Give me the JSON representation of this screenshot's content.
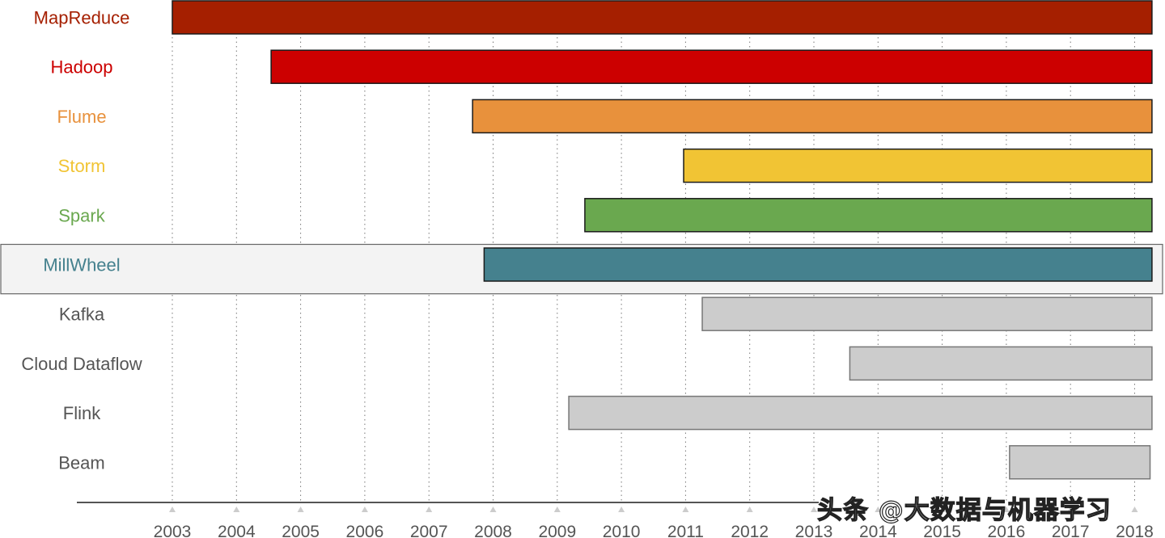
{
  "chart_data": {
    "type": "timeline",
    "x_axis": {
      "ticks": [
        "2003",
        "2004",
        "2005",
        "2006",
        "2007",
        "2008",
        "2009",
        "2010",
        "2011",
        "2012",
        "2013",
        "2014",
        "2015",
        "2016",
        "2017",
        "2018"
      ],
      "range": [
        2003,
        2018.3
      ],
      "grid": "dotted vertical"
    },
    "highlighted_row": "MillWheel",
    "series": [
      {
        "name": "MapReduce",
        "start": 2003.0,
        "end": 2018.27,
        "color": "#a51f00",
        "label_color": "#a51f00"
      },
      {
        "name": "Hadoop",
        "start": 2004.54,
        "end": 2018.27,
        "color": "#cc0000",
        "label_color": "#cc0000"
      },
      {
        "name": "Flume",
        "start": 2007.68,
        "end": 2018.27,
        "color": "#e8913c",
        "label_color": "#e8913c"
      },
      {
        "name": "Storm",
        "start": 2010.97,
        "end": 2018.27,
        "color": "#f1c434",
        "label_color": "#f1c434"
      },
      {
        "name": "Spark",
        "start": 2009.43,
        "end": 2018.27,
        "color": "#6aa84f",
        "label_color": "#6aa84f"
      },
      {
        "name": "MillWheel",
        "start": 2007.86,
        "end": 2018.27,
        "color": "#45818e",
        "label_color": "#45818e"
      },
      {
        "name": "Kafka",
        "start": 2011.26,
        "end": 2018.27,
        "color": "#cccccc",
        "label_color": "#555555"
      },
      {
        "name": "Cloud Dataflow",
        "start": 2013.56,
        "end": 2018.27,
        "color": "#cccccc",
        "label_color": "#555555"
      },
      {
        "name": "Flink",
        "start": 2009.18,
        "end": 2018.27,
        "color": "#cccccc",
        "label_color": "#555555"
      },
      {
        "name": "Beam",
        "start": 2016.05,
        "end": 2018.24,
        "color": "#cccccc",
        "label_color": "#555555"
      }
    ]
  },
  "watermark": "头条 @大数据与机器学习"
}
